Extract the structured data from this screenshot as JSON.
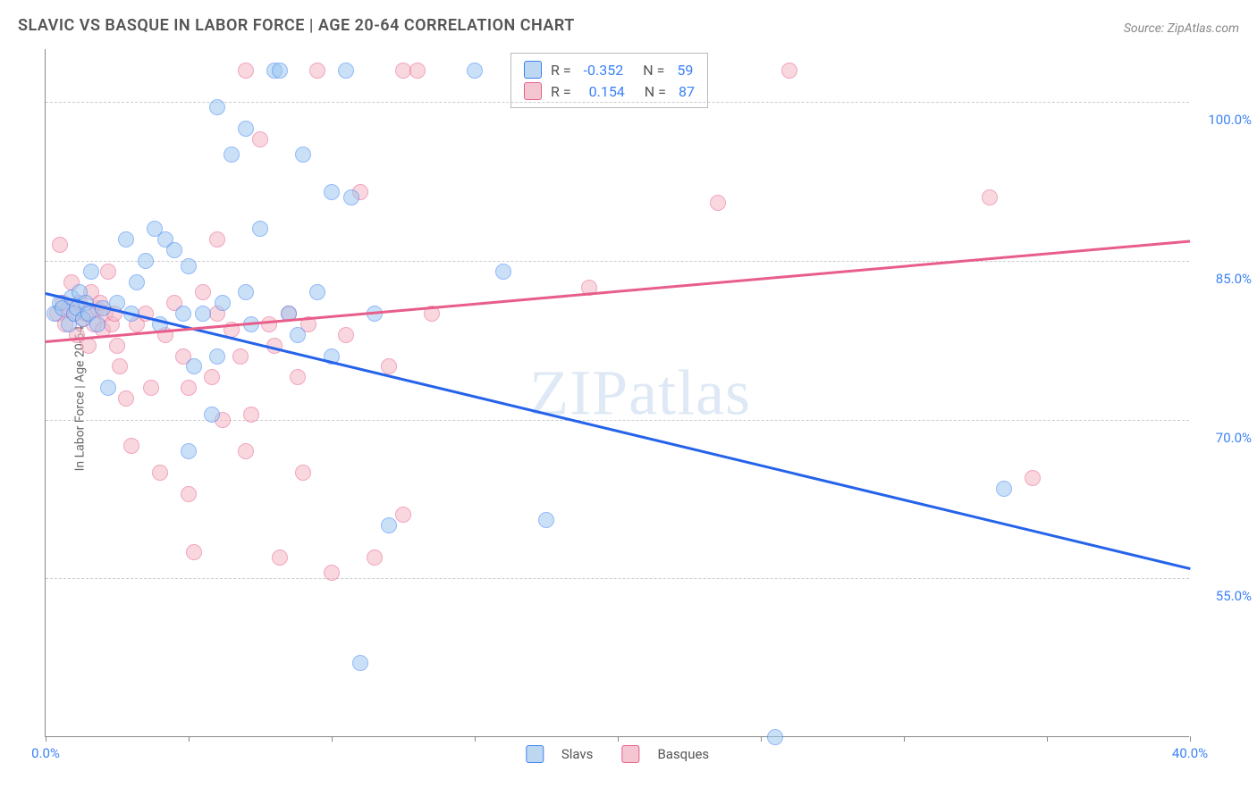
{
  "title": "SLAVIC VS BASQUE IN LABOR FORCE | AGE 20-64 CORRELATION CHART",
  "source": "Source: ZipAtlas.com",
  "ylabel": "In Labor Force | Age 20-64",
  "watermark": "ZIPatlas",
  "chart": {
    "type": "scatter",
    "xlim": [
      0,
      40
    ],
    "ylim": [
      40,
      105
    ],
    "xticks": [
      0,
      5,
      10,
      15,
      20,
      25,
      30,
      35,
      40
    ],
    "xtick_labels": {
      "0": "0.0%",
      "40": "40.0%"
    },
    "yticks": [
      55,
      70,
      85,
      100
    ],
    "ytick_labels": [
      "55.0%",
      "70.0%",
      "85.0%",
      "100.0%"
    ],
    "background": "#ffffff",
    "grid_color": "#cccccc",
    "axis_color": "#888888",
    "label_color": "#3b82f6",
    "title_color": "#555555"
  },
  "series": {
    "slavs": {
      "label": "Slavs",
      "fill": "#9ec8f0",
      "stroke": "#3b82f6",
      "trend_color": "#2563eb",
      "R": "-0.352",
      "N": "59",
      "trend": {
        "x1": 0,
        "y1": 82,
        "x2": 40,
        "y2": 56
      },
      "points": [
        [
          0.3,
          80
        ],
        [
          0.5,
          81
        ],
        [
          0.6,
          80.5
        ],
        [
          0.8,
          79
        ],
        [
          0.9,
          81.5
        ],
        [
          1.0,
          80
        ],
        [
          1.1,
          80.5
        ],
        [
          1.2,
          82
        ],
        [
          1.3,
          79.5
        ],
        [
          1.4,
          81
        ],
        [
          1.5,
          80
        ],
        [
          1.6,
          84
        ],
        [
          1.8,
          79
        ],
        [
          2.0,
          80.5
        ],
        [
          2.2,
          73
        ],
        [
          2.5,
          81
        ],
        [
          2.8,
          87
        ],
        [
          3.0,
          80
        ],
        [
          3.2,
          83
        ],
        [
          3.5,
          85
        ],
        [
          3.8,
          88
        ],
        [
          4.0,
          79
        ],
        [
          4.2,
          87
        ],
        [
          4.5,
          86
        ],
        [
          4.8,
          80
        ],
        [
          5.0,
          84.5
        ],
        [
          5.0,
          67
        ],
        [
          5.2,
          75
        ],
        [
          5.5,
          80
        ],
        [
          5.8,
          70.5
        ],
        [
          6.0,
          99.5
        ],
        [
          6.0,
          76
        ],
        [
          6.2,
          81
        ],
        [
          6.5,
          95
        ],
        [
          7.0,
          97.5
        ],
        [
          7.0,
          82
        ],
        [
          7.2,
          79
        ],
        [
          7.5,
          88
        ],
        [
          8.0,
          103
        ],
        [
          8.2,
          103
        ],
        [
          8.5,
          80
        ],
        [
          8.8,
          78
        ],
        [
          9.0,
          95
        ],
        [
          9.5,
          82
        ],
        [
          10.0,
          91.5
        ],
        [
          10.0,
          76
        ],
        [
          10.7,
          91
        ],
        [
          10.5,
          103
        ],
        [
          11.0,
          47
        ],
        [
          11.5,
          80
        ],
        [
          12.0,
          60
        ],
        [
          15.0,
          103
        ],
        [
          16.0,
          84
        ],
        [
          17.5,
          60.5
        ],
        [
          25.5,
          40
        ],
        [
          33.5,
          63.5
        ]
      ]
    },
    "basques": {
      "label": "Basques",
      "fill": "#f4b8c6",
      "stroke": "#e85d8a",
      "trend_color": "#e85d8a",
      "R": "0.154",
      "N": "87",
      "trend": {
        "x1": 0,
        "y1": 77.5,
        "x2": 40,
        "y2": 87
      },
      "points": [
        [
          0.4,
          80
        ],
        [
          0.5,
          86.5
        ],
        [
          0.6,
          81
        ],
        [
          0.7,
          79
        ],
        [
          0.8,
          80.5
        ],
        [
          0.9,
          83
        ],
        [
          1.0,
          80
        ],
        [
          1.1,
          78
        ],
        [
          1.2,
          81
        ],
        [
          1.3,
          79.5
        ],
        [
          1.4,
          80
        ],
        [
          1.5,
          77
        ],
        [
          1.6,
          82
        ],
        [
          1.7,
          79
        ],
        [
          1.8,
          80.5
        ],
        [
          1.9,
          81
        ],
        [
          2.0,
          78.5
        ],
        [
          2.1,
          80
        ],
        [
          2.2,
          84
        ],
        [
          2.3,
          79
        ],
        [
          2.4,
          80
        ],
        [
          2.5,
          77
        ],
        [
          2.6,
          75
        ],
        [
          2.8,
          72
        ],
        [
          3.0,
          67.5
        ],
        [
          3.2,
          79
        ],
        [
          3.5,
          80
        ],
        [
          3.7,
          73
        ],
        [
          4.0,
          65
        ],
        [
          4.2,
          78
        ],
        [
          4.5,
          81
        ],
        [
          4.8,
          76
        ],
        [
          5.0,
          73
        ],
        [
          5.0,
          63
        ],
        [
          5.2,
          57.5
        ],
        [
          5.5,
          82
        ],
        [
          5.8,
          74
        ],
        [
          6.0,
          87
        ],
        [
          6.0,
          80
        ],
        [
          6.2,
          70
        ],
        [
          6.5,
          78.5
        ],
        [
          6.8,
          76
        ],
        [
          7.0,
          103
        ],
        [
          7.0,
          67
        ],
        [
          7.2,
          70.5
        ],
        [
          7.5,
          96.5
        ],
        [
          7.8,
          79
        ],
        [
          8.0,
          77
        ],
        [
          8.2,
          57
        ],
        [
          8.5,
          80
        ],
        [
          8.8,
          74
        ],
        [
          9.0,
          65
        ],
        [
          9.2,
          79
        ],
        [
          9.5,
          103
        ],
        [
          10.0,
          55.5
        ],
        [
          10.5,
          78
        ],
        [
          11.0,
          91.5
        ],
        [
          11.5,
          57
        ],
        [
          12.0,
          75
        ],
        [
          12.5,
          61
        ],
        [
          12.5,
          103
        ],
        [
          13.0,
          103
        ],
        [
          13.5,
          80
        ],
        [
          19.0,
          82.5
        ],
        [
          23.5,
          90.5
        ],
        [
          26.0,
          103
        ],
        [
          34.5,
          64.5
        ],
        [
          33.0,
          91
        ]
      ]
    }
  },
  "stats_box": {
    "rows": [
      {
        "series": "slavs",
        "r_label": "R =",
        "n_label": "N ="
      },
      {
        "series": "basques",
        "r_label": "R =",
        "n_label": "N ="
      }
    ]
  },
  "legend": {
    "items": [
      "slavs",
      "basques"
    ]
  }
}
